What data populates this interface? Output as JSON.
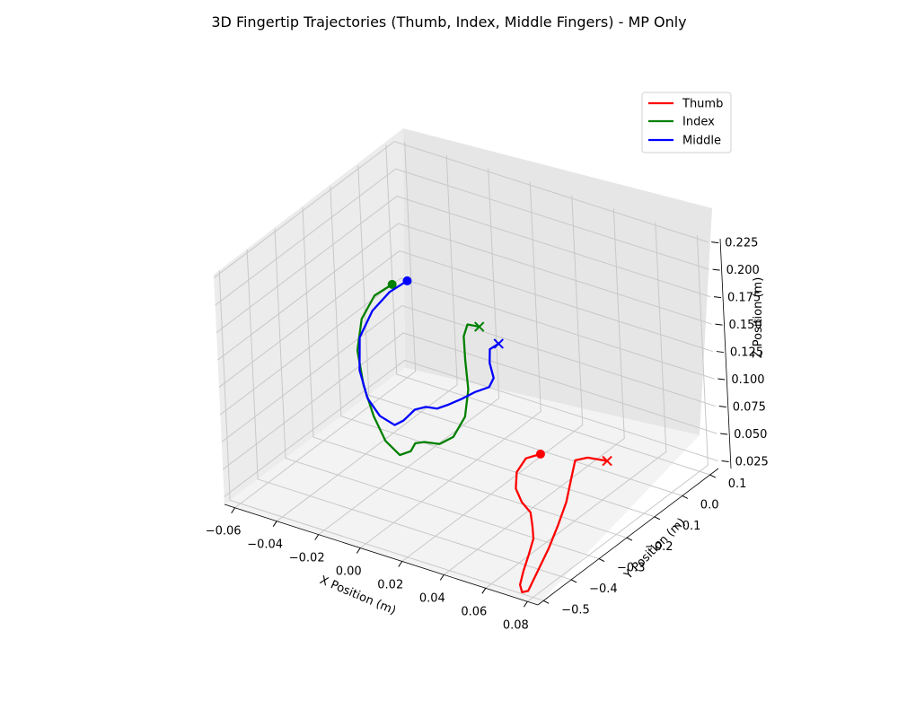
{
  "chart_data": {
    "type": "line3d",
    "title": "3D Fingertip Trajectories (Thumb, Index, Middle Fingers) - MP Only",
    "xlabel": "X Position (m)",
    "ylabel": "Y Position (m)",
    "zlabel": "Z Position (m)",
    "x_ticks": [
      "−0.06",
      "−0.04",
      "−0.02",
      "0.00",
      "0.02",
      "0.04",
      "0.06",
      "0.08"
    ],
    "y_ticks": [
      "−0.5",
      "−0.4",
      "−0.3",
      "−0.2",
      "−0.1",
      "0.0",
      "0.1"
    ],
    "z_ticks": [
      "0.025",
      "0.050",
      "0.075",
      "0.100",
      "0.125",
      "0.150",
      "0.175",
      "0.200",
      "0.225"
    ],
    "grid": true,
    "legend_position": "top-right",
    "start_marker": "circle",
    "end_marker": "x",
    "series": [
      {
        "name": "Thumb",
        "color": "#ff0000",
        "points": [
          [
            0.045,
            -0.2,
            0.07
          ],
          [
            0.042,
            -0.23,
            0.07
          ],
          [
            0.04,
            -0.25,
            0.06
          ],
          [
            0.042,
            -0.27,
            0.05
          ],
          [
            0.046,
            -0.28,
            0.042
          ],
          [
            0.05,
            -0.28,
            0.035
          ],
          [
            0.052,
            -0.29,
            0.026
          ],
          [
            0.055,
            -0.31,
            0.02
          ],
          [
            0.058,
            -0.35,
            0.015
          ],
          [
            0.062,
            -0.4,
            0.012
          ],
          [
            0.067,
            -0.45,
            0.012
          ],
          [
            0.072,
            -0.48,
            0.014
          ],
          [
            0.075,
            -0.48,
            0.017
          ],
          [
            0.074,
            -0.44,
            0.025
          ],
          [
            0.072,
            -0.38,
            0.035
          ],
          [
            0.07,
            -0.33,
            0.045
          ],
          [
            0.069,
            -0.29,
            0.058
          ],
          [
            0.068,
            -0.26,
            0.075
          ],
          [
            0.068,
            -0.245,
            0.087
          ],
          [
            0.072,
            -0.23,
            0.089
          ],
          [
            0.08,
            -0.22,
            0.089
          ]
        ]
      },
      {
        "name": "Index",
        "color": "#008000",
        "points": [
          [
            -0.04,
            -0.08,
            0.15
          ],
          [
            -0.046,
            -0.1,
            0.14
          ],
          [
            -0.05,
            -0.12,
            0.12
          ],
          [
            -0.05,
            -0.14,
            0.095
          ],
          [
            -0.045,
            -0.16,
            0.07
          ],
          [
            -0.038,
            -0.18,
            0.05
          ],
          [
            -0.03,
            -0.2,
            0.036
          ],
          [
            -0.022,
            -0.21,
            0.03
          ],
          [
            -0.018,
            -0.2,
            0.034
          ],
          [
            -0.017,
            -0.19,
            0.04
          ],
          [
            -0.014,
            -0.18,
            0.041
          ],
          [
            -0.008,
            -0.17,
            0.041
          ],
          [
            -0.004,
            -0.15,
            0.046
          ],
          [
            -0.002,
            -0.12,
            0.06
          ],
          [
            -0.004,
            -0.09,
            0.078
          ],
          [
            -0.009,
            -0.06,
            0.096
          ],
          [
            -0.012,
            -0.04,
            0.112
          ],
          [
            -0.012,
            -0.025,
            0.12
          ],
          [
            -0.007,
            -0.02,
            0.12
          ]
        ]
      },
      {
        "name": "Middle",
        "color": "#0000ff",
        "points": [
          [
            -0.034,
            -0.07,
            0.155
          ],
          [
            -0.04,
            -0.09,
            0.145
          ],
          [
            -0.046,
            -0.11,
            0.128
          ],
          [
            -0.05,
            -0.13,
            0.105
          ],
          [
            -0.048,
            -0.15,
            0.08
          ],
          [
            -0.042,
            -0.17,
            0.062
          ],
          [
            -0.035,
            -0.18,
            0.052
          ],
          [
            -0.028,
            -0.18,
            0.048
          ],
          [
            -0.025,
            -0.17,
            0.052
          ],
          [
            -0.022,
            -0.15,
            0.06
          ],
          [
            -0.018,
            -0.14,
            0.063
          ],
          [
            -0.014,
            -0.13,
            0.062
          ],
          [
            -0.01,
            -0.12,
            0.066
          ],
          [
            -0.006,
            -0.1,
            0.07
          ],
          [
            -0.002,
            -0.08,
            0.075
          ],
          [
            0.002,
            -0.06,
            0.078
          ],
          [
            0.003,
            -0.05,
            0.085
          ],
          [
            0.0,
            -0.04,
            0.095
          ],
          [
            -0.001,
            -0.03,
            0.105
          ],
          [
            0.002,
            -0.02,
            0.11
          ]
        ]
      }
    ]
  }
}
